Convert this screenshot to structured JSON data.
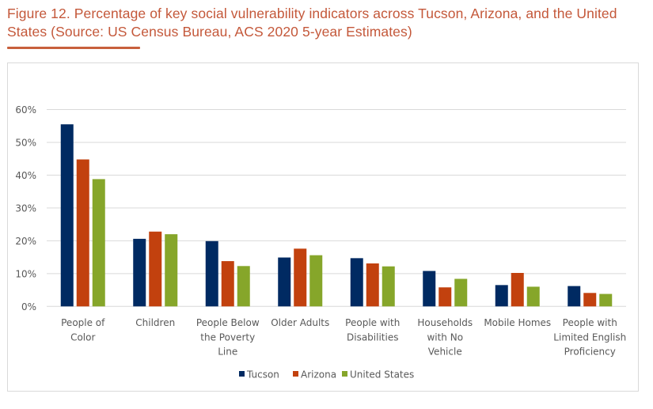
{
  "figure": {
    "title": "Figure 12. Percentage of key social vulnerability indicators across Tucson, Arizona, and the United States (Source: US Census Bureau, ACS 2020 5-year Estimates)",
    "title_color": "#c4583a"
  },
  "chart_data": {
    "type": "bar",
    "title": "",
    "xlabel": "",
    "ylabel": "",
    "ylim": [
      0,
      60
    ],
    "yticks": [
      0,
      10,
      20,
      30,
      40,
      50,
      60
    ],
    "ytick_labels": [
      "0%",
      "10%",
      "20%",
      "30%",
      "40%",
      "50%",
      "60%"
    ],
    "grid": true,
    "legend_position": "bottom",
    "categories": [
      [
        "People of",
        "Color"
      ],
      [
        "Children"
      ],
      [
        "People Below",
        "the Poverty",
        "Line"
      ],
      [
        "Older Adults"
      ],
      [
        "People with",
        "Disabilities"
      ],
      [
        "Households",
        "with No",
        "Vehicle"
      ],
      [
        "Mobile Homes"
      ],
      [
        "People with",
        "Limited English",
        "Proficiency"
      ]
    ],
    "series": [
      {
        "name": "Tucson",
        "color": "#002a62",
        "values": [
          55.5,
          20.6,
          19.9,
          14.9,
          14.7,
          10.8,
          6.5,
          6.2
        ]
      },
      {
        "name": "Arizona",
        "color": "#c2410e",
        "values": [
          44.8,
          22.8,
          13.8,
          17.6,
          13.1,
          5.8,
          10.2,
          4.1
        ]
      },
      {
        "name": "United States",
        "color": "#86a62a",
        "values": [
          38.8,
          22.0,
          12.3,
          15.6,
          12.2,
          8.4,
          6.0,
          3.8
        ]
      }
    ]
  }
}
